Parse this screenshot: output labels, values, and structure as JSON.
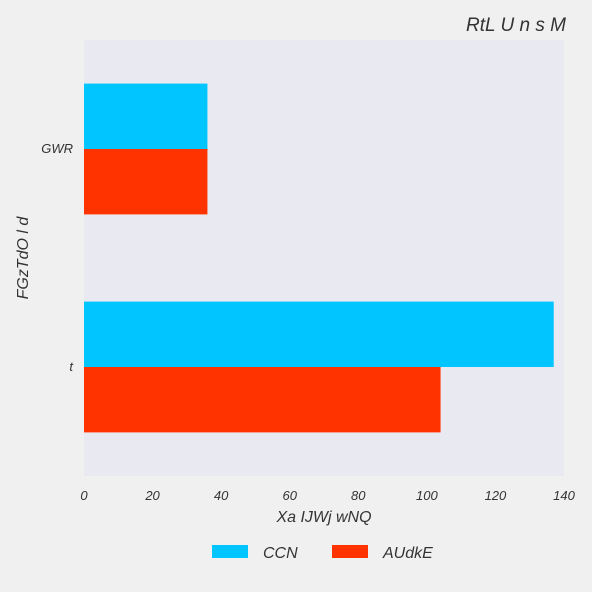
{
  "chart_data": {
    "type": "bar",
    "orientation": "horizontal",
    "title": "RtL U n    s M",
    "xlabel": "Xa IJWj  wNQ",
    "ylabel": "FGzTdO l d",
    "categories": [
      "GWR",
      "t"
    ],
    "series": [
      {
        "name": "CCN",
        "values": [
          36,
          137
        ],
        "color": "#00c5ff"
      },
      {
        "name": "AUdkE",
        "values": [
          36,
          104
        ],
        "color": "#ff3300"
      }
    ],
    "xlim": [
      0,
      140
    ],
    "xticks": [
      "0",
      "20",
      "40",
      "60",
      "80",
      "100",
      "120",
      "140"
    ],
    "grid": false,
    "legend_position": "bottom",
    "plot_background": "#e9e9f2"
  }
}
